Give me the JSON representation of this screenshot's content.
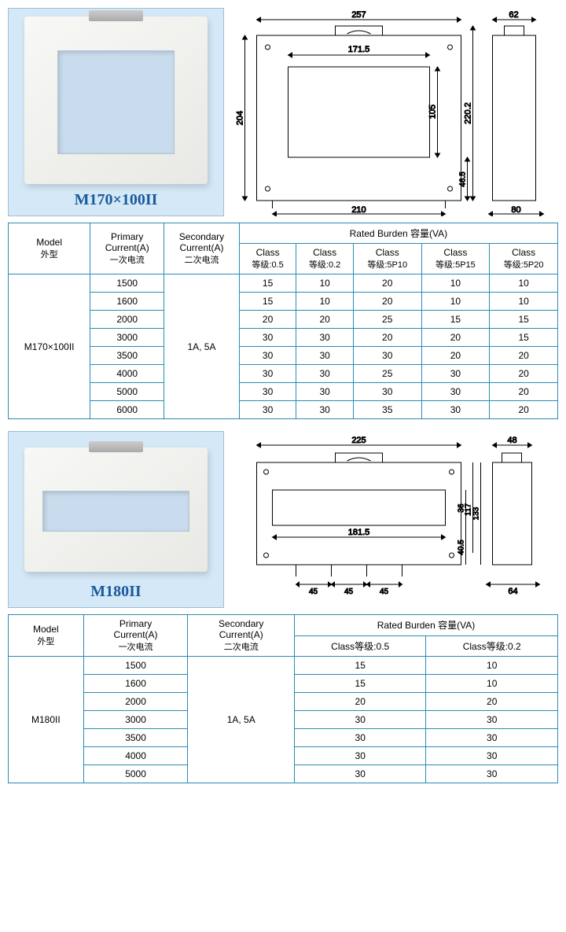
{
  "colors": {
    "table_border": "#2b8bb3",
    "panel_bg": "#d4e8f7",
    "label": "#1a5a9c",
    "drawing_line": "#000000"
  },
  "product1": {
    "label": "M170×100II",
    "drawing": {
      "dims": {
        "width_top": "257",
        "inner_width": "171.5",
        "height_left": "204",
        "inner_h": "105",
        "outer_h_right": "220.2",
        "foot_h": "46.5",
        "base_width": "210",
        "side_width": "62",
        "side_depth": "80"
      }
    }
  },
  "product2": {
    "label": "M180II",
    "drawing": {
      "dims": {
        "width_top": "225",
        "inner_width": "181.5",
        "outer_h": "133",
        "mid_h": "117",
        "inner_h": "36",
        "foot_h": "40.5",
        "spacing1": "45",
        "spacing2": "45",
        "spacing3": "45",
        "side_top": "48",
        "side_depth": "64"
      }
    }
  },
  "table1": {
    "headers": {
      "model": "Model",
      "model_cn": "外型",
      "primary": "Primary",
      "primary2": "Current(A)",
      "primary_cn": "一次电流",
      "secondary": "Secondary",
      "secondary2": "Current(A)",
      "secondary_cn": "二次电流",
      "burden": "Rated Burden 容量(VA)",
      "class": "Class",
      "class_cn": "等级:",
      "c1": "0.5",
      "c2": "0.2",
      "c3": "5P10",
      "c4": "5P15",
      "c5": "5P20"
    },
    "model": "M170×100II",
    "secondary_val": "1A, 5A",
    "rows": [
      {
        "p": "1500",
        "v": [
          "15",
          "10",
          "20",
          "10",
          "10"
        ]
      },
      {
        "p": "1600",
        "v": [
          "15",
          "10",
          "20",
          "10",
          "10"
        ]
      },
      {
        "p": "2000",
        "v": [
          "20",
          "20",
          "25",
          "15",
          "15"
        ]
      },
      {
        "p": "3000",
        "v": [
          "30",
          "30",
          "20",
          "20",
          "15"
        ]
      },
      {
        "p": "3500",
        "v": [
          "30",
          "30",
          "30",
          "20",
          "20"
        ]
      },
      {
        "p": "4000",
        "v": [
          "30",
          "30",
          "25",
          "30",
          "20"
        ]
      },
      {
        "p": "5000",
        "v": [
          "30",
          "30",
          "30",
          "30",
          "20"
        ]
      },
      {
        "p": "6000",
        "v": [
          "30",
          "30",
          "35",
          "30",
          "20"
        ]
      }
    ]
  },
  "table2": {
    "headers": {
      "model": "Model",
      "model_cn": "外型",
      "primary": "Primary",
      "primary2": "Current(A)",
      "primary_cn": "一次电流",
      "secondary": "Secondary",
      "secondary2": "Current(A)",
      "secondary_cn": "二次电流",
      "burden": "Rated Burden 容量(VA)",
      "class_cn": "Class等级:",
      "c1": "0.5",
      "c2": "0.2"
    },
    "model": "M180II",
    "secondary_val": "1A, 5A",
    "rows": [
      {
        "p": "1500",
        "v": [
          "15",
          "10"
        ]
      },
      {
        "p": "1600",
        "v": [
          "15",
          "10"
        ]
      },
      {
        "p": "2000",
        "v": [
          "20",
          "20"
        ]
      },
      {
        "p": "3000",
        "v": [
          "30",
          "30"
        ]
      },
      {
        "p": "3500",
        "v": [
          "30",
          "30"
        ]
      },
      {
        "p": "4000",
        "v": [
          "30",
          "30"
        ]
      },
      {
        "p": "5000",
        "v": [
          "30",
          "30"
        ]
      }
    ]
  }
}
